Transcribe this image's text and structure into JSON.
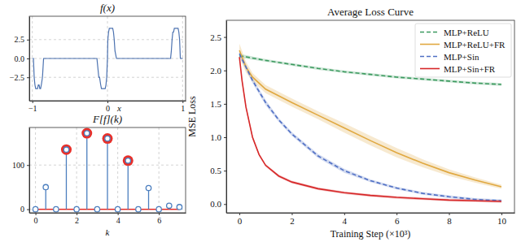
{
  "chart_data": [
    {
      "type": "line",
      "title": "f(x)",
      "x_label": "x",
      "xlim": [
        -1.04,
        1.04
      ],
      "xticks": [
        {
          "value": -1,
          "label": "−1"
        },
        0,
        1
      ],
      "ylim": [
        -5.6,
        5.6
      ],
      "yticks": [
        {
          "value": -2.5,
          "label": "−2.5"
        },
        {
          "value": 0,
          "label": "0.0"
        },
        {
          "value": 2.5,
          "label": "2.5"
        }
      ],
      "grid": true,
      "series": [
        {
          "color": "#4c72b0",
          "line_style": "solid",
          "x": [
            -1,
            -0.985,
            -0.975,
            -0.965,
            -0.955,
            -0.93,
            -0.92,
            -0.91,
            -0.9,
            -0.89,
            -0.88,
            -0.865,
            -0.85,
            -0.14,
            -0.13,
            -0.115,
            -0.105,
            -0.09,
            -0.08,
            -0.07,
            -0.03,
            -0.02,
            -0.01,
            0,
            0.005,
            0.015,
            0.025,
            0.035,
            0.07,
            0.08,
            0.09,
            0.1,
            0.12,
            0.84,
            0.85,
            0.86,
            0.87,
            0.88,
            0.89,
            0.94,
            0.95,
            0.96,
            0.97,
            1
          ],
          "values": [
            0,
            0,
            -2.5,
            -3.5,
            -4,
            -4,
            -3.5,
            -3.5,
            -4,
            -4,
            -3.5,
            -2.5,
            0,
            0,
            -1,
            -2.5,
            -2.5,
            -3.5,
            -4,
            -4,
            -4,
            -3.5,
            -2.5,
            0,
            2.5,
            3.5,
            4,
            4,
            4,
            3.5,
            2.5,
            1,
            0,
            0,
            1,
            2.5,
            3.5,
            3.5,
            4,
            4,
            3.5,
            2.5,
            0,
            0
          ]
        }
      ]
    },
    {
      "type": "stem",
      "title": "F[f](k)",
      "x_label": "k",
      "xlim": [
        -0.3,
        7.3
      ],
      "xticks": [
        0,
        2,
        4,
        6
      ],
      "ylim": [
        -8,
        185
      ],
      "yticks": [
        0,
        100
      ],
      "grid": true,
      "series": [
        {
          "type": "stem",
          "color": "#4c7fbf",
          "marker": "circle-open",
          "x": [
            0,
            0.5,
            1,
            1.5,
            2,
            2.5,
            3,
            3.5,
            4,
            4.5,
            5,
            5.5,
            6,
            6.5,
            7
          ],
          "values": [
            0,
            50,
            0,
            135,
            0,
            172,
            0,
            160,
            0,
            110,
            0,
            48,
            0,
            8,
            5
          ]
        },
        {
          "type": "scatter",
          "color": "#e8302a",
          "marker": "circle",
          "x": [
            1.5,
            2.5,
            3.5,
            4.5
          ],
          "values": [
            135,
            172,
            160,
            110
          ]
        }
      ]
    },
    {
      "type": "line",
      "title": "Average Loss Curve",
      "x_label": "Training Step (×10³)",
      "y_label": "MSE Loss",
      "xlim": [
        -0.5,
        10.5
      ],
      "xticks": [
        0,
        2,
        4,
        6,
        8,
        10
      ],
      "ylim": [
        -0.13,
        2.75
      ],
      "yticks": [
        {
          "value": 0,
          "label": "0.0"
        },
        {
          "value": 0.5,
          "label": "0.5"
        },
        {
          "value": 1,
          "label": "1.0"
        },
        {
          "value": 1.5,
          "label": "1.5"
        },
        {
          "value": 2,
          "label": "2.0"
        },
        {
          "value": 2.5,
          "label": "2.5"
        }
      ],
      "grid": false,
      "legend": "upper right",
      "series": [
        {
          "name": "MLP+ReLU",
          "color": "#3c9a5f",
          "line_style": "dashed",
          "x": [
            0,
            1,
            2,
            3,
            4,
            5,
            6,
            7,
            8,
            9,
            10
          ],
          "values": [
            2.22,
            2.15,
            2.09,
            2.03,
            1.98,
            1.94,
            1.9,
            1.87,
            1.84,
            1.81,
            1.79
          ],
          "error": [
            0.03,
            0.02,
            0.02,
            0.02,
            0.02,
            0.02,
            0.02,
            0.02,
            0.02,
            0.02,
            0.02
          ]
        },
        {
          "name": "MLP+ReLU+FR",
          "color": "#e0a840",
          "line_style": "solid",
          "x": [
            0,
            0.25,
            0.5,
            1,
            2,
            3,
            4,
            5,
            6,
            7,
            8,
            9,
            10
          ],
          "values": [
            2.3,
            2.05,
            1.9,
            1.72,
            1.52,
            1.33,
            1.14,
            0.95,
            0.77,
            0.61,
            0.47,
            0.36,
            0.26
          ],
          "error": [
            0.1,
            0.08,
            0.06,
            0.06,
            0.06,
            0.06,
            0.07,
            0.07,
            0.07,
            0.06,
            0.05,
            0.04,
            0.03
          ]
        },
        {
          "name": "MLP+Sin",
          "color": "#4f6fc4",
          "line_style": "dashed",
          "x": [
            0,
            0.5,
            1,
            1.5,
            2,
            3,
            4,
            5,
            6,
            7,
            8,
            9,
            10
          ],
          "values": [
            2.25,
            1.85,
            1.52,
            1.26,
            1.05,
            0.72,
            0.5,
            0.35,
            0.24,
            0.16,
            0.11,
            0.07,
            0.05
          ],
          "error": [
            0.04,
            0.04,
            0.04,
            0.03,
            0.03,
            0.03,
            0.03,
            0.02,
            0.02,
            0.02,
            0.02,
            0.02,
            0.02
          ]
        },
        {
          "name": "MLP+Sin+FR",
          "color": "#d62728",
          "line_style": "solid",
          "x": [
            0,
            0.1,
            0.25,
            0.5,
            0.75,
            1,
            1.5,
            2,
            3,
            4,
            5,
            6,
            7,
            8,
            9,
            10
          ],
          "values": [
            2.2,
            1.85,
            1.45,
            1.0,
            0.74,
            0.58,
            0.42,
            0.33,
            0.23,
            0.17,
            0.13,
            0.1,
            0.08,
            0.06,
            0.05,
            0.04
          ],
          "error": [
            0.03,
            0.03,
            0.03,
            0.03,
            0.02,
            0.02,
            0.02,
            0.02,
            0.02,
            0.02,
            0.02,
            0.02,
            0.02,
            0.02,
            0.02,
            0.02
          ]
        }
      ]
    }
  ]
}
